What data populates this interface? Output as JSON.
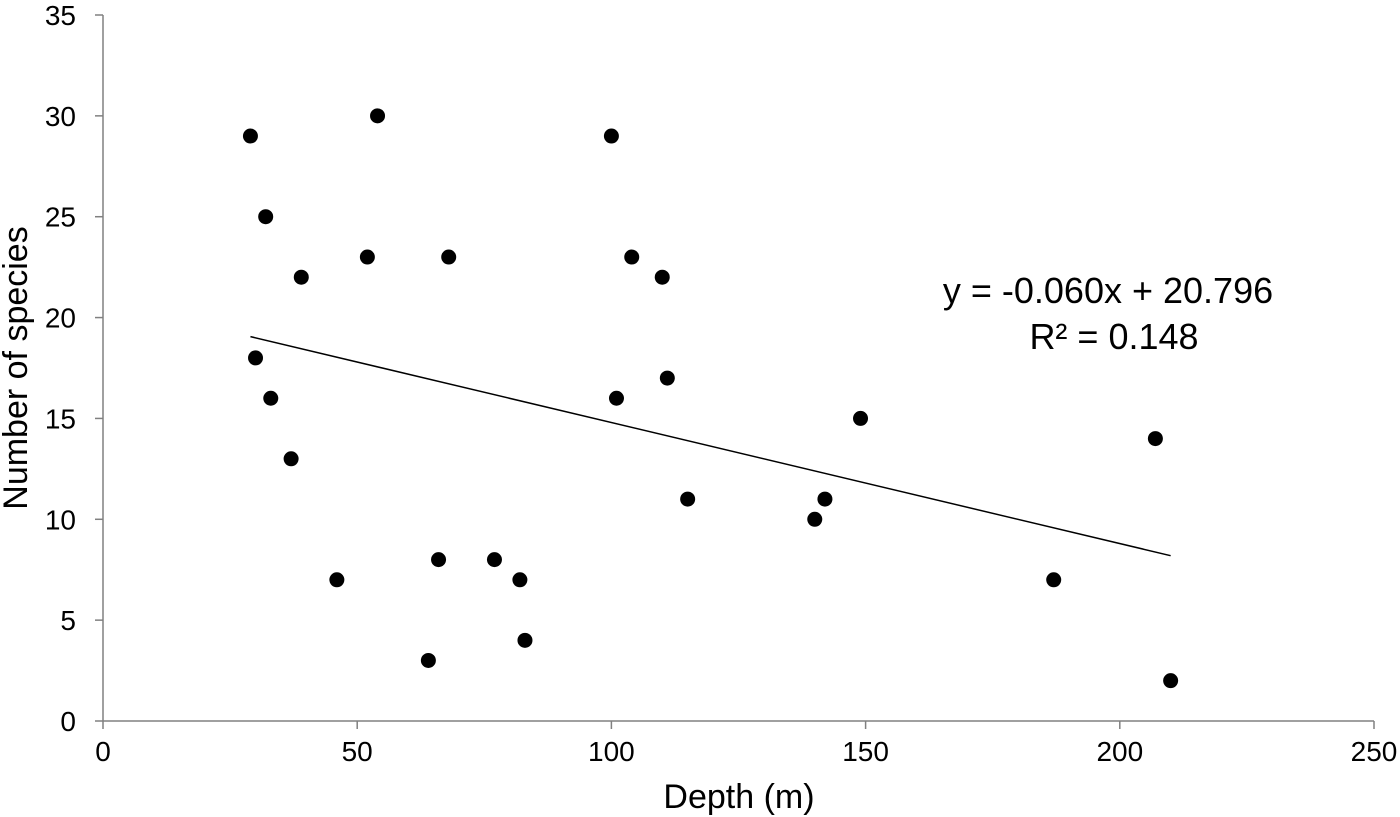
{
  "chart_data": {
    "type": "scatter",
    "xlabel": "Depth (m)",
    "ylabel": "Number of species",
    "xlim": [
      0,
      250
    ],
    "ylim": [
      0,
      35
    ],
    "x_ticks": [
      0,
      50,
      100,
      150,
      200,
      250
    ],
    "y_ticks": [
      0,
      5,
      10,
      15,
      20,
      25,
      30,
      35
    ],
    "grid": false,
    "legend": "none",
    "series": [
      {
        "points": [
          {
            "x": 29,
            "y": 29
          },
          {
            "x": 30,
            "y": 18
          },
          {
            "x": 32,
            "y": 25
          },
          {
            "x": 33,
            "y": 16
          },
          {
            "x": 37,
            "y": 13
          },
          {
            "x": 39,
            "y": 22
          },
          {
            "x": 46,
            "y": 7
          },
          {
            "x": 52,
            "y": 23
          },
          {
            "x": 54,
            "y": 30
          },
          {
            "x": 64,
            "y": 3
          },
          {
            "x": 66,
            "y": 8
          },
          {
            "x": 68,
            "y": 23
          },
          {
            "x": 77,
            "y": 8
          },
          {
            "x": 82,
            "y": 7
          },
          {
            "x": 83,
            "y": 4
          },
          {
            "x": 100,
            "y": 29
          },
          {
            "x": 101,
            "y": 16
          },
          {
            "x": 104,
            "y": 23
          },
          {
            "x": 110,
            "y": 22
          },
          {
            "x": 111,
            "y": 17
          },
          {
            "x": 115,
            "y": 11
          },
          {
            "x": 140,
            "y": 10
          },
          {
            "x": 142,
            "y": 11
          },
          {
            "x": 149,
            "y": 15
          },
          {
            "x": 187,
            "y": 7
          },
          {
            "x": 207,
            "y": 14
          },
          {
            "x": 210,
            "y": 2
          }
        ]
      }
    ],
    "trendline": {
      "slope": -0.06,
      "intercept": 20.796,
      "x_range": [
        29,
        210
      ]
    },
    "annotations": {
      "equation": "y = -0.060x + 20.796",
      "r_squared": "R² = 0.148"
    },
    "colors": {
      "points": "#000000",
      "trendline": "#000000",
      "axes": "#808080"
    }
  }
}
